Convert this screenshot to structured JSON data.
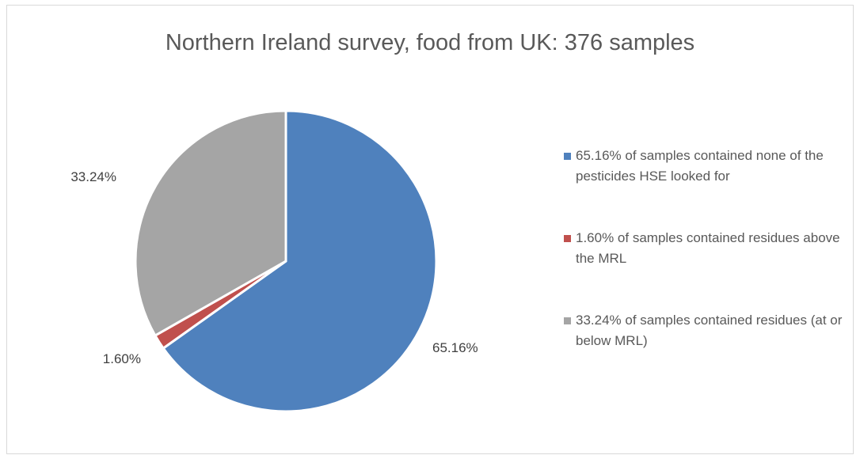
{
  "chart_data": {
    "type": "pie",
    "title": "Northern Ireland survey, food from UK: 376 samples",
    "slices": [
      {
        "name": "65.16% of samples contained none of the pesticides HSE looked for",
        "value": 65.16,
        "label": "65.16%",
        "color": "#4f81bd"
      },
      {
        "name": "1.60% of samples contained residues above the MRL",
        "value": 1.6,
        "label": "1.60%",
        "color": "#c0504d"
      },
      {
        "name": "33.24% of samples contained residues (at or below MRL)",
        "value": 33.24,
        "label": "33.24%",
        "color": "#a5a5a5"
      }
    ],
    "legend_position": "right"
  }
}
